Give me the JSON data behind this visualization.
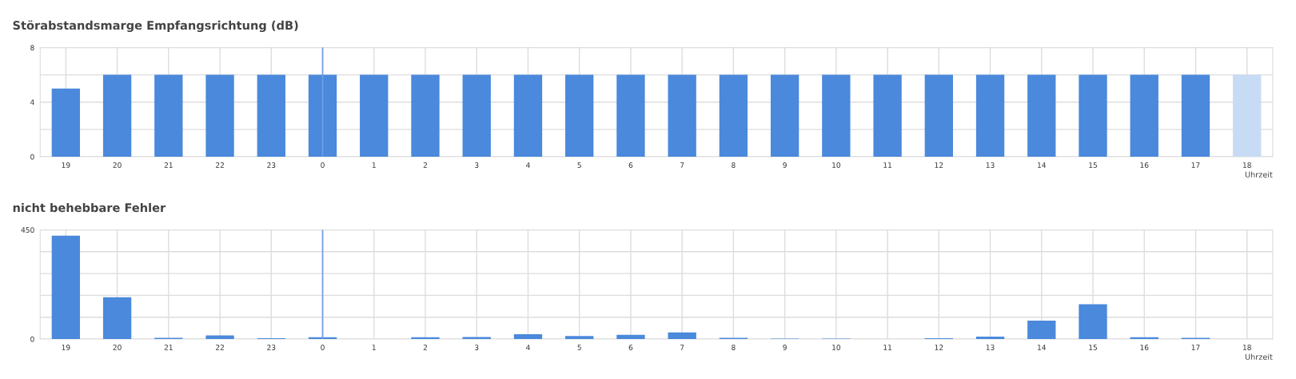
{
  "chart_data": [
    {
      "type": "bar",
      "title": "Störabstandsmarge Empfangsrichtung (dB)",
      "xlabel": "Uhrzeit",
      "categories": [
        "19",
        "20",
        "21",
        "22",
        "23",
        "0",
        "1",
        "2",
        "3",
        "4",
        "5",
        "6",
        "7",
        "8",
        "9",
        "10",
        "11",
        "12",
        "13",
        "14",
        "15",
        "16",
        "17",
        "18"
      ],
      "values": [
        5,
        6,
        6,
        6,
        6,
        6,
        6,
        6,
        6,
        6,
        6,
        6,
        6,
        6,
        6,
        6,
        6,
        6,
        6,
        6,
        6,
        6,
        6,
        6
      ],
      "colors": [
        "#4a89dc",
        "#4a89dc",
        "#4a89dc",
        "#4a89dc",
        "#4a89dc",
        "#4a89dc",
        "#4a89dc",
        "#4a89dc",
        "#4a89dc",
        "#4a89dc",
        "#4a89dc",
        "#4a89dc",
        "#4a89dc",
        "#4a89dc",
        "#4a89dc",
        "#4a89dc",
        "#4a89dc",
        "#4a89dc",
        "#4a89dc",
        "#4a89dc",
        "#4a89dc",
        "#4a89dc",
        "#4a89dc",
        "#c7dcf4"
      ],
      "ylim": [
        0,
        8
      ],
      "yticks": [
        0,
        {
          "value": 2,
          "label": null
        },
        4,
        {
          "value": 6,
          "label": null
        },
        8
      ],
      "grid": true,
      "ref_lines": [
        {
          "axis": "x",
          "value": "0",
          "color": "#6f9be8"
        }
      ]
    },
    {
      "type": "bar",
      "title": "nicht behebbare Fehler",
      "xlabel": "Uhrzeit",
      "categories": [
        "19",
        "20",
        "21",
        "22",
        "23",
        "0",
        "1",
        "2",
        "3",
        "4",
        "5",
        "6",
        "7",
        "8",
        "9",
        "10",
        "11",
        "12",
        "13",
        "14",
        "15",
        "16",
        "17",
        "18"
      ],
      "values": [
        426,
        172,
        5,
        15,
        3,
        7,
        null,
        7,
        8,
        20,
        12,
        17,
        27,
        5,
        2,
        2,
        0,
        3,
        10,
        76,
        143,
        7,
        5,
        null
      ],
      "color": "#4a89dc",
      "ylim": [
        0,
        450
      ],
      "yticks": [
        0,
        {
          "value": 90,
          "label": null
        },
        {
          "value": 180,
          "label": null
        },
        {
          "value": 270,
          "label": null
        },
        {
          "value": 360,
          "label": null
        },
        450
      ],
      "grid": true,
      "ref_lines": [
        {
          "axis": "x",
          "value": "0",
          "color": "#6f9be8"
        }
      ]
    }
  ]
}
